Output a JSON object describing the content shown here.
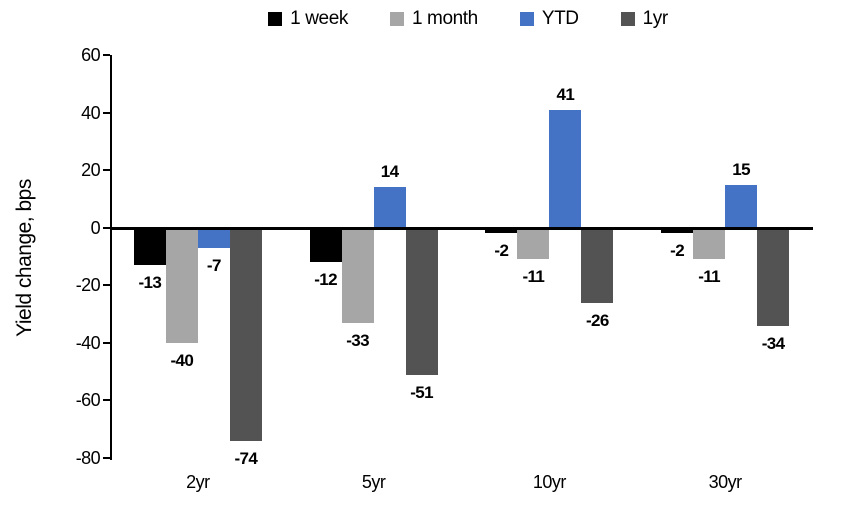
{
  "chart_data": {
    "type": "bar",
    "title": "",
    "xlabel": "",
    "ylabel": "Yield change, bps",
    "categories": [
      "2yr",
      "5yr",
      "10yr",
      "30yr"
    ],
    "series": [
      {
        "name": "1 week",
        "color": "#000000",
        "values": [
          -13,
          -12,
          -2,
          -2
        ]
      },
      {
        "name": "1 month",
        "color": "#a6a6a6",
        "values": [
          -40,
          -33,
          -11,
          -11
        ]
      },
      {
        "name": "YTD",
        "color": "#4472c4",
        "values": [
          -7,
          14,
          41,
          15
        ]
      },
      {
        "name": "1yr",
        "color": "#535353",
        "values": [
          -74,
          -51,
          -26,
          -34
        ]
      }
    ],
    "ylim": [
      -80,
      60
    ],
    "yticks": [
      60,
      40,
      20,
      0,
      -20,
      -40,
      -60,
      -80
    ],
    "grid": false,
    "legend_position": "top",
    "data_labels": true,
    "axis_color": "#000000",
    "background_color": "#ffffff"
  }
}
